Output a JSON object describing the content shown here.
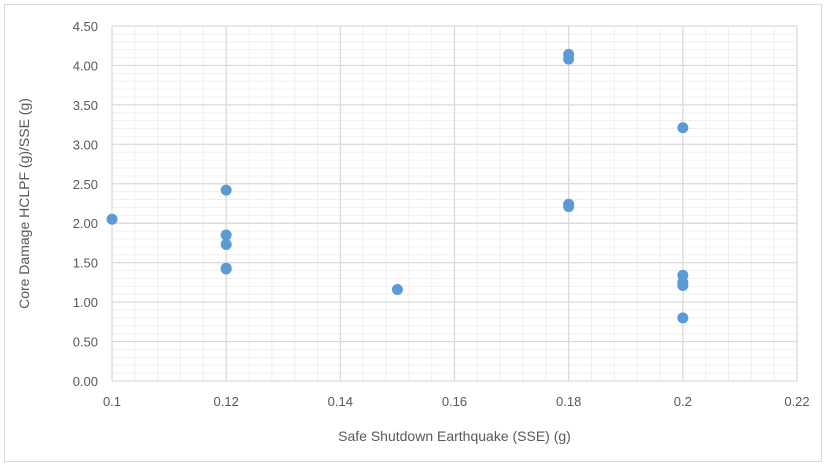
{
  "chart_data": {
    "type": "scatter",
    "title": "",
    "xlabel": "Safe Shutdown Earthquake (SSE) (g)",
    "ylabel": "Core Damage HCLPF (g)/SSE (g)",
    "xlim": [
      0.1,
      0.22
    ],
    "ylim": [
      0,
      4.5
    ],
    "x_ticks": [
      "0.1",
      "0.12",
      "0.14",
      "0.16",
      "0.18",
      "0.2",
      "0.22"
    ],
    "y_ticks": [
      "0.00",
      "0.50",
      "1.00",
      "1.50",
      "2.00",
      "2.50",
      "3.00",
      "3.50",
      "4.00",
      "4.50"
    ],
    "grid": true,
    "legend": "none",
    "marker_color": "#5b9bd5",
    "series": [
      {
        "points": [
          {
            "x": 0.1,
            "y": 2.05
          },
          {
            "x": 0.12,
            "y": 2.42
          },
          {
            "x": 0.12,
            "y": 1.85
          },
          {
            "x": 0.12,
            "y": 1.73
          },
          {
            "x": 0.12,
            "y": 1.42
          },
          {
            "x": 0.12,
            "y": 1.43
          },
          {
            "x": 0.15,
            "y": 1.16
          },
          {
            "x": 0.18,
            "y": 4.14
          },
          {
            "x": 0.18,
            "y": 4.08
          },
          {
            "x": 0.18,
            "y": 2.24
          },
          {
            "x": 0.18,
            "y": 2.21
          },
          {
            "x": 0.2,
            "y": 3.21
          },
          {
            "x": 0.2,
            "y": 1.34
          },
          {
            "x": 0.2,
            "y": 1.25
          },
          {
            "x": 0.2,
            "y": 1.21
          },
          {
            "x": 0.2,
            "y": 0.8
          }
        ]
      }
    ]
  }
}
